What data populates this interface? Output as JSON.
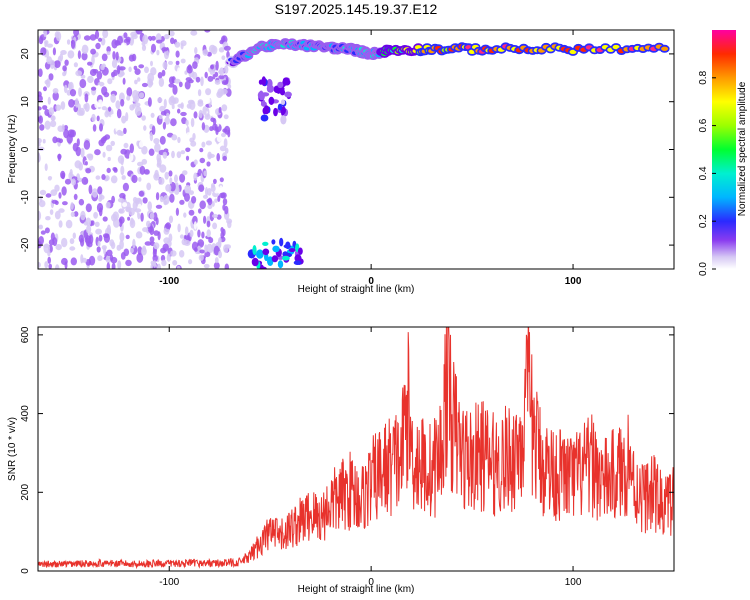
{
  "title": "S197.2025.145.19.37.E12",
  "colors": {
    "snr_line": "#e8322c",
    "axis": "#000000",
    "colormap": [
      "#ffffff",
      "#d6c8f4",
      "#9b5cf0",
      "#6a00e8",
      "#2a2aff",
      "#00b6ff",
      "#00f0d0",
      "#00ff30",
      "#9cff00",
      "#ffff00",
      "#ff9a00",
      "#ff2a00",
      "#ff2a7a",
      "#ff00a0"
    ]
  },
  "chart_data": [
    {
      "type": "heatmap",
      "xlabel": "Height of straight line (km)",
      "ylabel": "Frequency (Hz)",
      "xlim": [
        -165,
        150
      ],
      "ylim": [
        -25,
        25
      ],
      "xticks": [
        -100,
        0,
        100
      ],
      "xtick_labels": [
        "-100",
        "0",
        "100"
      ],
      "yticks": [
        -20,
        -10,
        0,
        10,
        20
      ],
      "ytick_labels": [
        "-20",
        "-10",
        "0",
        "10",
        "20"
      ],
      "colorbar": {
        "label": "Normalized spectral amplitude",
        "range": [
          0,
          1
        ],
        "ticks": [
          0.0,
          0.2,
          0.4,
          0.6,
          0.8
        ],
        "tick_labels": [
          "0.0",
          "0.2",
          "0.4",
          "0.6",
          "0.8"
        ]
      },
      "features": [
        {
          "kind": "noise",
          "x_range": [
            -165,
            -70
          ],
          "freq_range": [
            -25,
            25
          ],
          "amplitude": 0.15
        },
        {
          "kind": "line",
          "x": [
            -70,
            -55,
            -40,
            -25,
            -10,
            0,
            10,
            30,
            60,
            100,
            148
          ],
          "freq": [
            18,
            21.5,
            22,
            21.5,
            21,
            20,
            20.8,
            21,
            21,
            21,
            21
          ],
          "amplitude": [
            0.3,
            0.5,
            0.45,
            0.4,
            0.45,
            0.5,
            0.6,
            0.85,
            0.95,
            0.95,
            0.9
          ]
        },
        {
          "kind": "blob",
          "x_range": [
            -60,
            -35
          ],
          "freq_range": [
            -25,
            -19
          ],
          "amplitude": 0.4
        },
        {
          "kind": "blob",
          "x_range": [
            -55,
            -40
          ],
          "freq_range": [
            6,
            15
          ],
          "amplitude": 0.25
        }
      ]
    },
    {
      "type": "line",
      "xlabel": "Height of straight line (km)",
      "ylabel": "SNR (10 * v/v)",
      "xlim": [
        -165,
        150
      ],
      "ylim": [
        0,
        620
      ],
      "xticks": [
        -100,
        0,
        100
      ],
      "xtick_labels": [
        "-100",
        "0",
        "100"
      ],
      "yticks": [
        0,
        200,
        400,
        600
      ],
      "ytick_labels": [
        "0",
        "200",
        "400",
        "600"
      ],
      "series": [
        {
          "x": [
            -165,
            -150,
            -135,
            -120,
            -105,
            -90,
            -75,
            -65,
            -60,
            -55,
            -50,
            -45,
            -40,
            -35,
            -30,
            -25,
            -20,
            -15,
            -10,
            -5,
            0,
            5,
            10,
            15,
            18,
            20,
            25,
            30,
            35,
            38,
            40,
            45,
            50,
            55,
            60,
            65,
            70,
            75,
            78,
            80,
            85,
            90,
            95,
            100,
            105,
            110,
            115,
            120,
            125,
            128,
            130,
            135,
            140,
            145,
            150
          ],
          "y": [
            18,
            20,
            22,
            20,
            21,
            22,
            22,
            25,
            40,
            80,
            110,
            95,
            120,
            140,
            160,
            150,
            190,
            210,
            230,
            200,
            250,
            280,
            300,
            320,
            480,
            330,
            300,
            280,
            340,
            600,
            420,
            330,
            310,
            330,
            300,
            310,
            320,
            380,
            500,
            390,
            300,
            280,
            270,
            260,
            280,
            300,
            250,
            270,
            280,
            330,
            240,
            210,
            220,
            180,
            200
          ]
        }
      ]
    }
  ]
}
